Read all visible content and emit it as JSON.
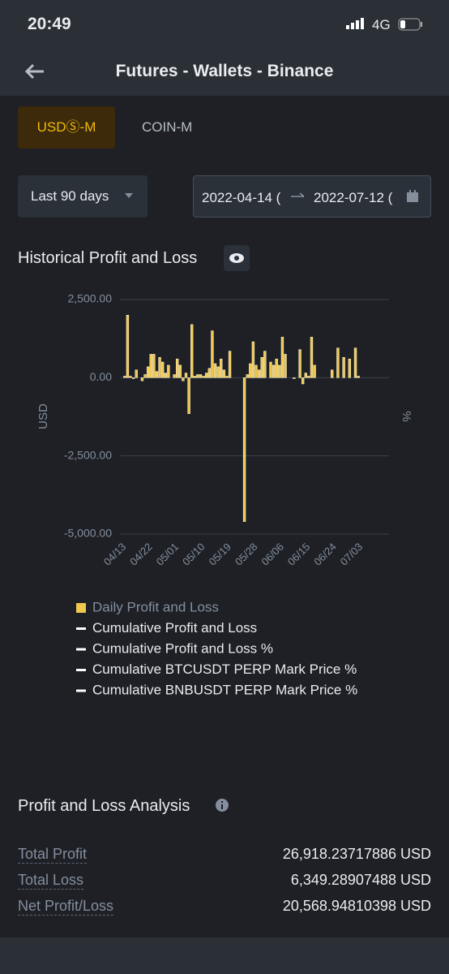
{
  "status_bar": {
    "time": "20:49",
    "network": "4G"
  },
  "header": {
    "title": "Futures - Wallets - Binance"
  },
  "tabs": [
    "USDⓈ-M",
    "COIN-M"
  ],
  "filters": {
    "period": "Last 90 days",
    "start_date": "2022-04-14 (",
    "end_date": "2022-07-12 ("
  },
  "chart_data": {
    "type": "bar",
    "title": "Historical Profit and Loss",
    "y_label": "USD",
    "y2_label": "%",
    "categories": [
      "04/13",
      null,
      null,
      null,
      null,
      null,
      null,
      null,
      null,
      "04/22",
      null,
      null,
      null,
      null,
      null,
      null,
      null,
      null,
      "05/01",
      null,
      null,
      null,
      null,
      null,
      null,
      null,
      null,
      "05/10",
      null,
      null,
      null,
      null,
      null,
      null,
      null,
      null,
      "05/19",
      null,
      null,
      null,
      null,
      null,
      null,
      null,
      null,
      "05/28",
      null,
      null,
      null,
      null,
      null,
      null,
      null,
      null,
      "06/06",
      null,
      null,
      null,
      null,
      null,
      null,
      null,
      null,
      "06/15",
      null,
      null,
      null,
      null,
      null,
      null,
      null,
      null,
      "06/24",
      null,
      null,
      null,
      null,
      null,
      null,
      null,
      null,
      "07/03",
      null,
      null,
      null,
      null,
      null,
      null,
      null,
      null,
      null
    ],
    "series": [
      {
        "name": "Daily Profit and Loss",
        "color": "#f0c84e",
        "values": [
          50,
          2000,
          50,
          -30,
          250,
          0,
          -100,
          100,
          350,
          750,
          750,
          200,
          650,
          500,
          150,
          400,
          0,
          100,
          600,
          400,
          -100,
          150,
          -1150,
          1700,
          50,
          100,
          100,
          50,
          150,
          300,
          1500,
          450,
          350,
          600,
          250,
          50,
          850,
          0,
          0,
          0,
          0,
          -4600,
          100,
          450,
          1150,
          400,
          250,
          650,
          850,
          0,
          500,
          400,
          600,
          400,
          1300,
          750,
          0,
          0,
          -30,
          0,
          900,
          -200,
          150,
          50,
          1300,
          400,
          0,
          0,
          0,
          0,
          0,
          250,
          0,
          950,
          0,
          650,
          0,
          600,
          0,
          950,
          50,
          0,
          0,
          0,
          0,
          0,
          0,
          0,
          0,
          0,
          0
        ]
      }
    ],
    "other_legend_entries": [
      {
        "name": "Cumulative Profit and Loss",
        "color": "#ffffff"
      },
      {
        "name": "Cumulative Profit and Loss %",
        "color": "#ffffff"
      },
      {
        "name": "Cumulative BTCUSDT PERP Mark Price %",
        "color": "#ffffff"
      },
      {
        "name": "Cumulative BNBUSDT PERP Mark Price %",
        "color": "#ffffff"
      }
    ],
    "ylim": [
      -5000,
      2500
    ],
    "yticks": [
      {
        "value": 2500,
        "label": "2,500.00"
      },
      {
        "value": 0,
        "label": "0.00"
      },
      {
        "value": -2500,
        "label": "-2,500.00"
      },
      {
        "value": -5000,
        "label": "-5,000.00"
      }
    ],
    "grid": true
  },
  "analysis": {
    "title": "Profit and Loss Analysis",
    "rows": [
      [
        "Total Profit",
        "26,918.23717886 USD"
      ],
      [
        "Total Loss",
        "6,349.28907488 USD"
      ],
      [
        "Net Profit/Loss",
        "20,568.94810398 USD"
      ]
    ]
  }
}
